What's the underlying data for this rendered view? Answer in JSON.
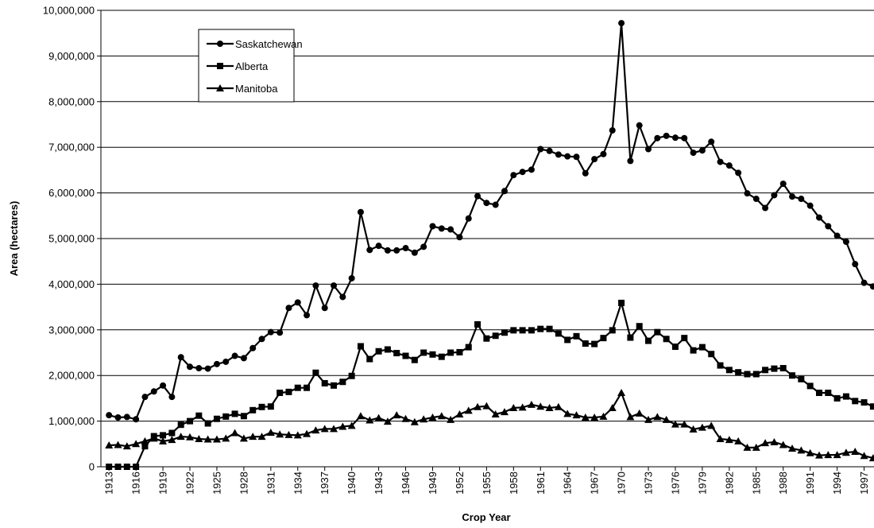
{
  "chart_data": {
    "type": "line",
    "x": [
      1913,
      1914,
      1915,
      1916,
      1917,
      1918,
      1919,
      1920,
      1921,
      1922,
      1923,
      1924,
      1925,
      1926,
      1927,
      1928,
      1929,
      1930,
      1931,
      1932,
      1933,
      1934,
      1935,
      1936,
      1937,
      1938,
      1939,
      1940,
      1941,
      1942,
      1943,
      1944,
      1945,
      1946,
      1947,
      1948,
      1949,
      1950,
      1951,
      1952,
      1953,
      1954,
      1955,
      1956,
      1957,
      1958,
      1959,
      1960,
      1961,
      1962,
      1963,
      1964,
      1965,
      1966,
      1967,
      1968,
      1969,
      1970,
      1971,
      1972,
      1973,
      1974,
      1975,
      1976,
      1977,
      1978,
      1979,
      1980,
      1981,
      1982,
      1983,
      1984,
      1985,
      1986,
      1987,
      1988,
      1989,
      1990,
      1991,
      1992,
      1993,
      1994,
      1995,
      1996,
      1997,
      1998
    ],
    "series": [
      {
        "name": "Saskatchewan",
        "color": "#000000",
        "marker": "circle",
        "values": [
          1130000,
          1080000,
          1090000,
          1040000,
          1530000,
          1650000,
          1780000,
          1530000,
          2400000,
          2190000,
          2160000,
          2150000,
          2250000,
          2300000,
          2430000,
          2380000,
          2600000,
          2800000,
          2950000,
          2940000,
          3480000,
          3600000,
          3320000,
          3970000,
          3480000,
          3970000,
          3720000,
          4130000,
          5580000,
          4750000,
          4840000,
          4740000,
          4740000,
          4790000,
          4690000,
          4820000,
          5270000,
          5220000,
          5200000,
          5030000,
          5440000,
          5930000,
          5780000,
          5740000,
          6040000,
          6390000,
          6460000,
          6510000,
          6960000,
          6920000,
          6840000,
          6800000,
          6790000,
          6430000,
          6740000,
          6850000,
          7370000,
          9720000,
          6700000,
          7480000,
          6960000,
          7200000,
          7250000,
          7210000,
          7200000,
          6880000,
          6930000,
          7120000,
          6680000,
          6600000,
          6440000,
          5990000,
          5870000,
          5670000,
          5950000,
          6200000,
          5920000,
          5870000,
          5720000,
          5460000,
          5270000,
          5060000,
          4930000,
          4440000,
          4030000,
          3950000
        ]
      },
      {
        "name": "Alberta",
        "color": "#000000",
        "marker": "square",
        "values": [
          0,
          0,
          0,
          0,
          450000,
          670000,
          690000,
          740000,
          920000,
          1000000,
          1120000,
          950000,
          1050000,
          1100000,
          1160000,
          1110000,
          1240000,
          1310000,
          1320000,
          1620000,
          1640000,
          1730000,
          1730000,
          2060000,
          1830000,
          1780000,
          1860000,
          1990000,
          2640000,
          2360000,
          2530000,
          2570000,
          2490000,
          2430000,
          2340000,
          2500000,
          2460000,
          2410000,
          2500000,
          2510000,
          2620000,
          3120000,
          2810000,
          2870000,
          2940000,
          2990000,
          2990000,
          2990000,
          3020000,
          3020000,
          2920000,
          2780000,
          2860000,
          2700000,
          2690000,
          2820000,
          2990000,
          3590000,
          2830000,
          3080000,
          2760000,
          2950000,
          2800000,
          2630000,
          2820000,
          2550000,
          2620000,
          2470000,
          2220000,
          2120000,
          2070000,
          2030000,
          2030000,
          2120000,
          2150000,
          2160000,
          2000000,
          1920000,
          1770000,
          1620000,
          1620000,
          1500000,
          1540000,
          1440000,
          1410000,
          1320000
        ]
      },
      {
        "name": "Manitoba",
        "color": "#000000",
        "marker": "triangle",
        "values": [
          470000,
          480000,
          450000,
          500000,
          560000,
          620000,
          560000,
          590000,
          660000,
          650000,
          610000,
          600000,
          600000,
          620000,
          740000,
          620000,
          660000,
          660000,
          750000,
          710000,
          700000,
          690000,
          720000,
          800000,
          830000,
          830000,
          880000,
          900000,
          1110000,
          1020000,
          1070000,
          990000,
          1130000,
          1050000,
          980000,
          1040000,
          1080000,
          1110000,
          1030000,
          1150000,
          1230000,
          1310000,
          1330000,
          1150000,
          1200000,
          1290000,
          1300000,
          1360000,
          1320000,
          1290000,
          1310000,
          1160000,
          1130000,
          1080000,
          1080000,
          1100000,
          1290000,
          1620000,
          1090000,
          1170000,
          1030000,
          1090000,
          1030000,
          930000,
          930000,
          820000,
          860000,
          900000,
          610000,
          590000,
          560000,
          420000,
          420000,
          520000,
          540000,
          480000,
          400000,
          360000,
          300000,
          250000,
          260000,
          260000,
          310000,
          330000,
          240000,
          190000
        ]
      }
    ],
    "x_label": "Crop Year",
    "y_label": "Area (hectares)",
    "xlim": [
      1912.1,
      1998.1
    ],
    "xticks": [
      1913,
      1916,
      1919,
      1922,
      1925,
      1928,
      1931,
      1934,
      1937,
      1940,
      1943,
      1946,
      1949,
      1952,
      1955,
      1958,
      1961,
      1964,
      1967,
      1970,
      1973,
      1976,
      1979,
      1982,
      1985,
      1988,
      1991,
      1994,
      1997
    ],
    "ylim": [
      0,
      10000000
    ],
    "yticks": [
      0,
      {
        "value": 1000000,
        "label": "1,000,000"
      },
      {
        "value": 2000000,
        "label": "2,000,000"
      },
      {
        "value": 3000000,
        "label": "3,000,000"
      },
      {
        "value": 4000000,
        "label": "4,000,000"
      },
      {
        "value": 5000000,
        "label": "5,000,000"
      },
      {
        "value": 6000000,
        "label": "6,000,000"
      },
      {
        "value": 7000000,
        "label": "7,000,000"
      },
      {
        "value": 8000000,
        "label": "8,000,000"
      },
      {
        "value": 9000000,
        "label": "9,000,000"
      },
      {
        "value": 10000000,
        "label": "10,000,000"
      }
    ],
    "grid": true,
    "legend_position": "upper left"
  }
}
